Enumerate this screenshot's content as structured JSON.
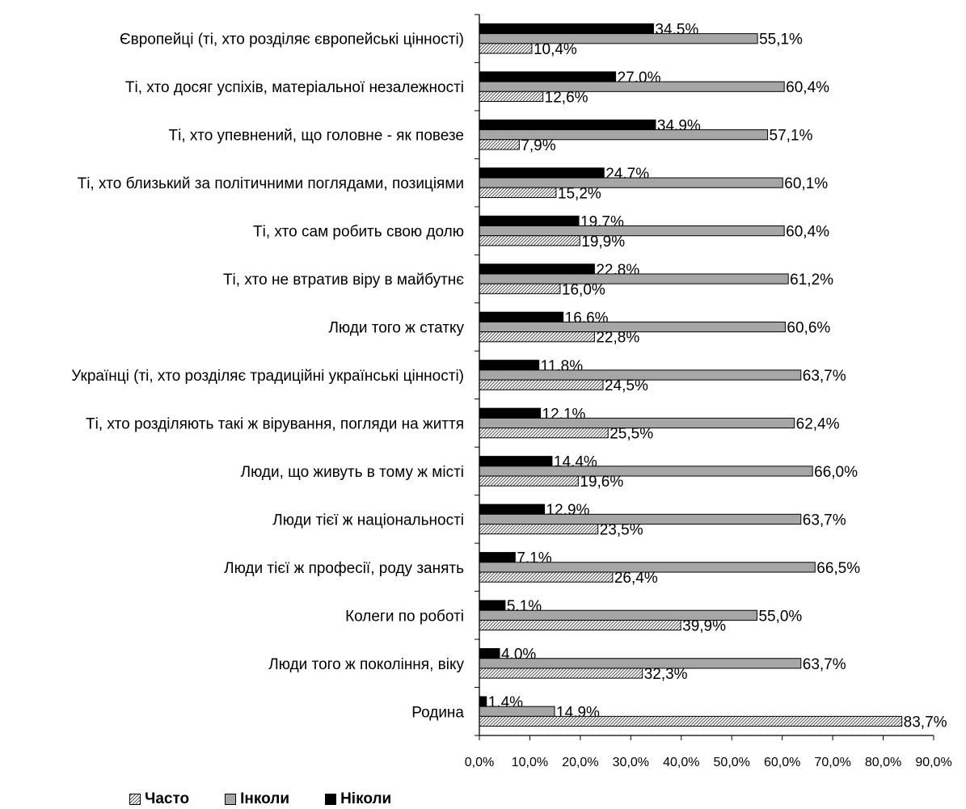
{
  "chart_data": {
    "type": "bar",
    "orientation": "horizontal",
    "categories": [
      "Європейці (ті, хто розділяє європейські цінності)",
      "Ті, хто досяг успіхів, матеріальної незалежності",
      "Ті, хто упевнений, що головне - як повезе",
      "Ті, хто близький за політичними поглядами, позиціями",
      "Ті, хто сам робить свою долю",
      "Ті, хто не втратив віру в майбутнє",
      "Люди того ж статку",
      "Українці (ті, хто розділяє традиційні українські цінності)",
      "Ті, хто розділяють такі ж вірування, погляди на життя",
      "Люди, що живуть в тому ж місті",
      "Люди тієї ж національності",
      "Люди тієї ж професії, роду занять",
      "Колеги по роботі",
      "Люди того ж покоління, віку",
      "Родина"
    ],
    "series": [
      {
        "name": "Ніколи",
        "color": "#000000",
        "pattern": "solid",
        "values": [
          34.5,
          27.0,
          34.9,
          24.7,
          19.7,
          22.8,
          16.6,
          11.8,
          12.1,
          14.4,
          12.9,
          7.1,
          5.1,
          4.0,
          1.4
        ],
        "labels": [
          "34,5%",
          "27,0%",
          "34,9%",
          "24,7%",
          "19,7%",
          "22,8%",
          "16,6%",
          "11,8%",
          "12,1%",
          "14,4%",
          "12,9%",
          "7,1%",
          "5,1%",
          "4,0%",
          "1,4%"
        ]
      },
      {
        "name": "Інколи",
        "color": "#a6a6a6",
        "pattern": "solid",
        "values": [
          55.1,
          60.4,
          57.1,
          60.1,
          60.4,
          61.2,
          60.6,
          63.7,
          62.4,
          66.0,
          63.7,
          66.5,
          55.0,
          63.7,
          14.9
        ],
        "labels": [
          "55,1%",
          "60,4%",
          "57,1%",
          "60,1%",
          "60,4%",
          "61,2%",
          "60,6%",
          "63,7%",
          "62,4%",
          "66,0%",
          "63,7%",
          "66,5%",
          "55,0%",
          "63,7%",
          "14,9%"
        ]
      },
      {
        "name": "Часто",
        "color": "#bfbfbf",
        "pattern": "diagonal-hatch",
        "values": [
          10.4,
          12.6,
          7.9,
          15.2,
          19.9,
          16.0,
          22.8,
          24.5,
          25.5,
          19.6,
          23.5,
          26.4,
          39.9,
          32.3,
          83.7
        ],
        "labels": [
          "10,4%",
          "12,6%",
          "7,9%",
          "15,2%",
          "19,9%",
          "16,0%",
          "22,8%",
          "24,5%",
          "25,5%",
          "19,6%",
          "23,5%",
          "26,4%",
          "39,9%",
          "32,3%",
          "83,7%"
        ]
      }
    ],
    "xlim": [
      0,
      90
    ],
    "xticks": [
      0,
      10,
      20,
      30,
      40,
      50,
      60,
      70,
      80,
      90
    ],
    "xtick_labels": [
      "0,0%",
      "10,0%",
      "20,0%",
      "30,0%",
      "40,0%",
      "50,0%",
      "60,0%",
      "70,0%",
      "80,0%",
      "90,0%"
    ],
    "grid": false,
    "legend": {
      "placement": "bottom-left",
      "order": [
        "Часто",
        "Інколи",
        "Ніколи"
      ]
    }
  }
}
